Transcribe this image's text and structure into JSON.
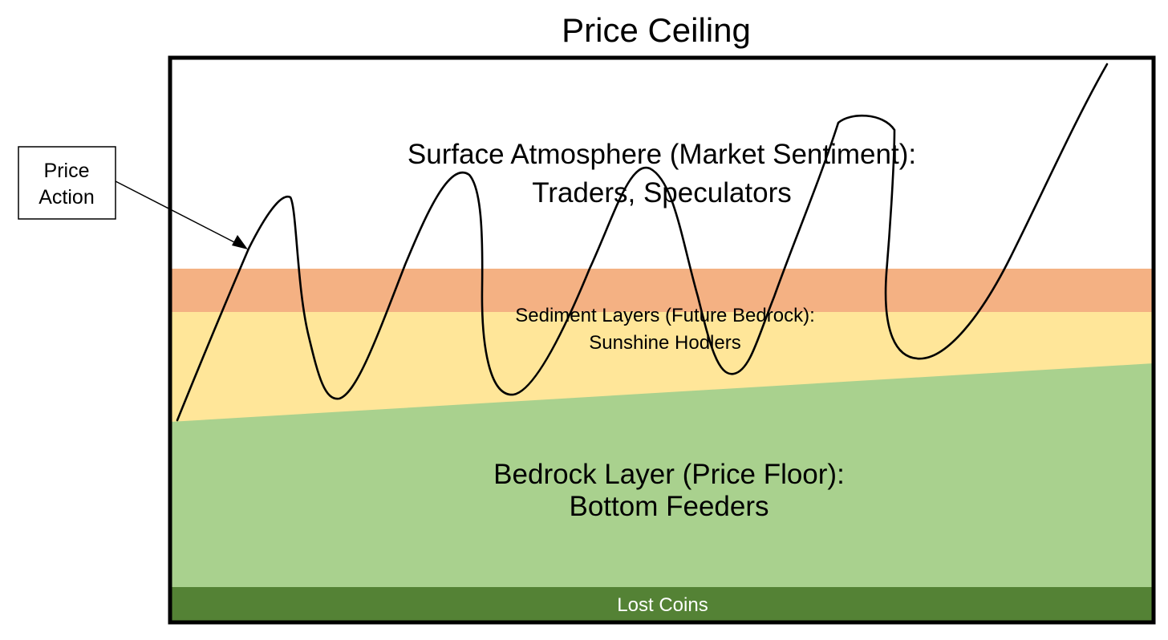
{
  "title": "Price Ceiling",
  "callout": {
    "line1": "Price",
    "line2": "Action"
  },
  "layers": {
    "surface": {
      "line1": "Surface Atmosphere (Market Sentiment):",
      "line2": "Traders, Speculators"
    },
    "sediment": {
      "line1": "Sediment Layers (Future Bedrock):",
      "line2": "Sunshine Hodlers"
    },
    "bedrock": {
      "line1": "Bedrock Layer (Price Floor):",
      "line2": "Bottom Feeders"
    },
    "lost": {
      "label": "Lost Coins"
    }
  },
  "colors": {
    "surface": "#ffffff",
    "orange_band": "#f4b183",
    "sediment": "#ffe699",
    "bedrock": "#a9d18e",
    "lost_coins": "#548235",
    "frame": "#000000"
  }
}
